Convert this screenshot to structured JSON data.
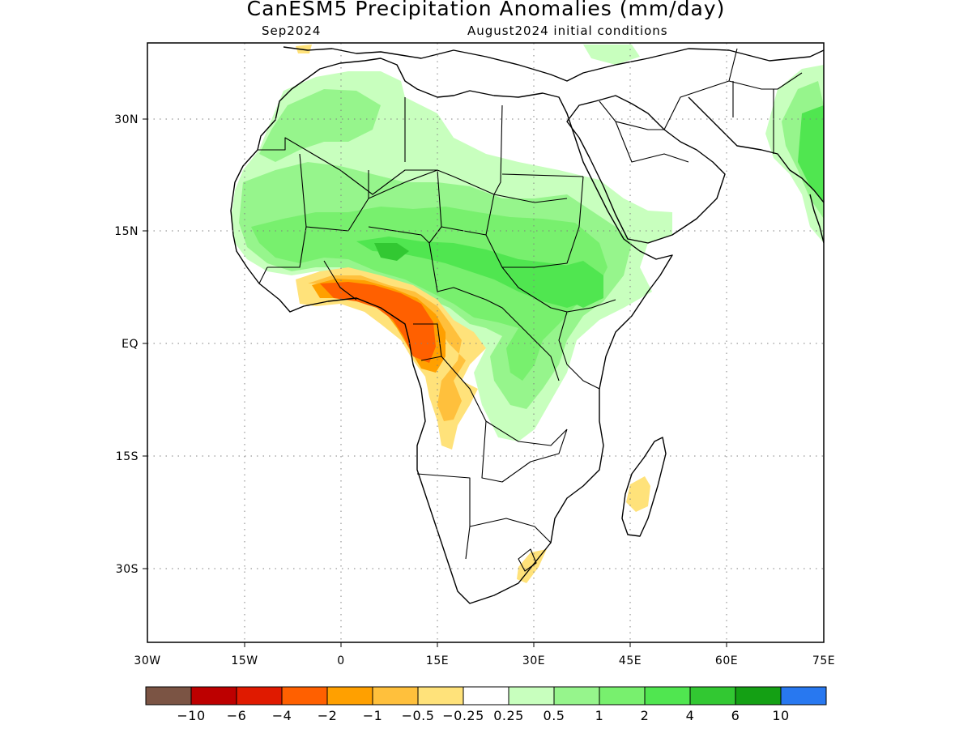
{
  "title": "CanESM5 Precipitation Anomalies (mm/day)",
  "subtitle_left": "Sep2024",
  "subtitle_right": "August2024 initial conditions",
  "map": {
    "lon_range": [
      -30,
      75
    ],
    "lat_range": [
      -40,
      40
    ],
    "lon_ticks": [
      {
        "value": -30,
        "label": "30W"
      },
      {
        "value": -15,
        "label": "15W"
      },
      {
        "value": 0,
        "label": "0"
      },
      {
        "value": 15,
        "label": "15E"
      },
      {
        "value": 30,
        "label": "30E"
      },
      {
        "value": 45,
        "label": "45E"
      },
      {
        "value": 60,
        "label": "60E"
      },
      {
        "value": 75,
        "label": "75E"
      }
    ],
    "lat_ticks": [
      {
        "value": 30,
        "label": "30N"
      },
      {
        "value": 15,
        "label": "15N"
      },
      {
        "value": 0,
        "label": "EQ"
      },
      {
        "value": -15,
        "label": "15S"
      },
      {
        "value": -30,
        "label": "30S"
      }
    ],
    "grid": "dotted"
  },
  "colorbar": {
    "colors": [
      "#7b5444",
      "#bd0000",
      "#e01a00",
      "#ff6000",
      "#ffa000",
      "#ffc03c",
      "#ffe27a",
      "#ffffff",
      "#c8ffbe",
      "#96f58c",
      "#78f06e",
      "#50e650",
      "#32c832",
      "#14a014",
      "#2878f0"
    ],
    "labels": [
      "−10",
      "−6",
      "−4",
      "−2",
      "−1",
      "−0.5",
      "−0.25",
      "0.25",
      "0.5",
      "1",
      "2",
      "4",
      "6",
      "10"
    ]
  }
}
